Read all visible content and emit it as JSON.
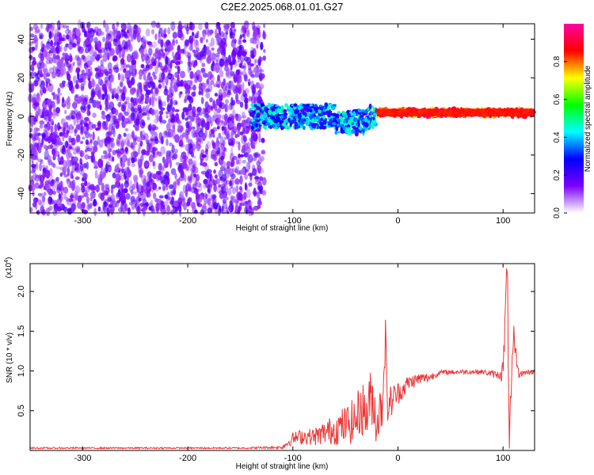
{
  "title": "C2E2.2025.068.01.01.G27",
  "chart_data": [
    {
      "type": "heatmap",
      "xlabel": "Height of straight line (km)",
      "ylabel": "Frequency (Hz)",
      "xlim": [
        -350,
        130
      ],
      "ylim": [
        -50,
        48
      ],
      "xticks": [
        -300,
        -200,
        -100,
        0,
        100
      ],
      "yticks": [
        -40,
        -20,
        0,
        20,
        40
      ],
      "colorbar": {
        "label": "Normalized spectral amplitude",
        "range": [
          0,
          1
        ],
        "ticks": [
          0.0,
          0.2,
          0.4,
          0.6,
          0.8
        ],
        "tick_labels": [
          "0.0",
          "0.2",
          "0.4",
          "0.6",
          "0.8"
        ],
        "colors": [
          "#ffffff",
          "#7b00ff",
          "#0000ff",
          "#00ffff",
          "#00ff00",
          "#ffff00",
          "#ff0000",
          "#ff00a0"
        ]
      },
      "regions": [
        {
          "x_range": [
            -350,
            -127
          ],
          "freq_range": [
            -50,
            48
          ],
          "amplitude_range": [
            0.0,
            0.2
          ],
          "description_color": "#7b00ff"
        },
        {
          "x_range": [
            -140,
            -20
          ],
          "freq_center": 0,
          "freq_halfwidth": 6,
          "amplitude_range": [
            0.2,
            0.5
          ]
        },
        {
          "x_range": [
            -20,
            130
          ],
          "freq_center": 2,
          "freq_halfwidth": 2,
          "amplitude_range": [
            0.7,
            1.0
          ]
        }
      ]
    },
    {
      "type": "line",
      "xlabel": "Height of straight line (km)",
      "ylabel": "SNR (10 * v/v)",
      "multiplier_label": "(x10",
      "multiplier_exp": "4",
      "xlim": [
        -350,
        130
      ],
      "ylim": [
        0,
        2.35
      ],
      "xticks": [
        -300,
        -200,
        -100,
        0,
        100
      ],
      "yticks": [
        0.5,
        1.0,
        1.5,
        2.0
      ],
      "ytick_labels": [
        "0.5",
        "1.0",
        "1.5",
        "2.0"
      ],
      "series": [
        {
          "color": "#ee3333",
          "x": [
            -350,
            -300,
            -250,
            -200,
            -150,
            -110,
            -100,
            -90,
            -80,
            -70,
            -60,
            -50,
            -40,
            -35,
            -30,
            -25,
            -20,
            -15,
            -12,
            -10,
            -5,
            0,
            5,
            10,
            20,
            30,
            40,
            60,
            80,
            95,
            100,
            104,
            106,
            108,
            110,
            115,
            120,
            130
          ],
          "y": [
            0.03,
            0.03,
            0.03,
            0.03,
            0.03,
            0.04,
            0.15,
            0.18,
            0.17,
            0.22,
            0.27,
            0.32,
            0.38,
            0.55,
            0.45,
            0.7,
            0.35,
            0.6,
            1.45,
            0.55,
            0.65,
            0.72,
            0.78,
            0.85,
            0.9,
            0.92,
            0.98,
            0.99,
            0.99,
            0.95,
            1.0,
            2.3,
            0.2,
            0.7,
            1.4,
            0.95,
            0.98,
            0.99
          ],
          "noise": [
            0.01,
            0.01,
            0.01,
            0.01,
            0.01,
            0.02,
            0.08,
            0.1,
            0.11,
            0.15,
            0.2,
            0.25,
            0.3,
            0.35,
            0.35,
            0.38,
            0.3,
            0.35,
            0.3,
            0.25,
            0.2,
            0.15,
            0.12,
            0.1,
            0.08,
            0.06,
            0.03,
            0.03,
            0.03,
            0.05,
            0.15,
            0.3,
            0.25,
            0.3,
            0.2,
            0.04,
            0.03,
            0.03
          ]
        }
      ]
    }
  ]
}
